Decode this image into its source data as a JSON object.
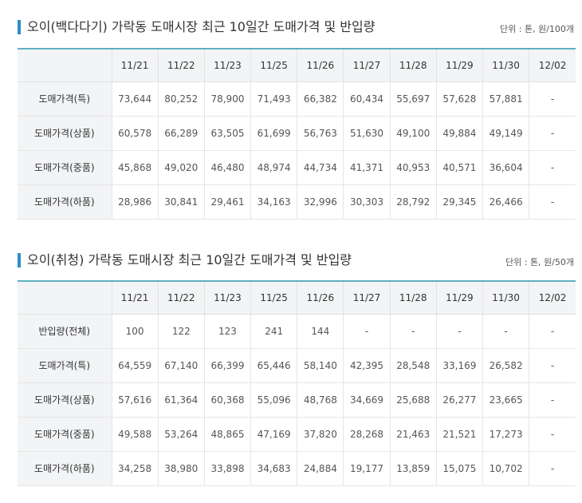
{
  "table1": {
    "title": "오이(백다다기) 가락동 도매시장 최근 10일간 도매가격 및 반입량",
    "unit": "단위 : 톤, 원/100개",
    "dates": [
      "11/21",
      "11/22",
      "11/23",
      "11/25",
      "11/26",
      "11/27",
      "11/28",
      "11/29",
      "11/30",
      "12/02"
    ],
    "rows": [
      {
        "label": "도매가격(특)",
        "values": [
          "73,644",
          "80,252",
          "78,900",
          "71,493",
          "66,382",
          "60,434",
          "55,697",
          "57,628",
          "57,881",
          "-"
        ]
      },
      {
        "label": "도매가격(상품)",
        "values": [
          "60,578",
          "66,289",
          "63,505",
          "61,699",
          "56,763",
          "51,630",
          "49,100",
          "49,884",
          "49,149",
          "-"
        ]
      },
      {
        "label": "도매가격(중품)",
        "values": [
          "45,868",
          "49,020",
          "46,480",
          "48,974",
          "44,734",
          "41,371",
          "40,953",
          "40,571",
          "36,604",
          "-"
        ]
      },
      {
        "label": "도매가격(하품)",
        "values": [
          "28,986",
          "30,841",
          "29,461",
          "34,163",
          "32,996",
          "30,303",
          "28,792",
          "29,345",
          "26,466",
          "-"
        ]
      }
    ]
  },
  "table2": {
    "title": "오이(취청) 가락동 도매시장 최근 10일간 도매가격 및 반입량",
    "unit": "단위 : 톤, 원/50개",
    "dates": [
      "11/21",
      "11/22",
      "11/23",
      "11/25",
      "11/26",
      "11/27",
      "11/28",
      "11/29",
      "11/30",
      "12/02"
    ],
    "rows": [
      {
        "label": "반입량(전체)",
        "values": [
          "100",
          "122",
          "123",
          "241",
          "144",
          "-",
          "-",
          "-",
          "-",
          "-"
        ]
      },
      {
        "label": "도매가격(특)",
        "values": [
          "64,559",
          "67,140",
          "66,399",
          "65,446",
          "58,140",
          "42,395",
          "28,548",
          "33,169",
          "26,582",
          "-"
        ]
      },
      {
        "label": "도매가격(상품)",
        "values": [
          "57,616",
          "61,364",
          "60,368",
          "55,096",
          "48,768",
          "34,669",
          "25,688",
          "26,277",
          "23,665",
          "-"
        ]
      },
      {
        "label": "도매가격(중품)",
        "values": [
          "49,588",
          "53,264",
          "48,865",
          "47,169",
          "37,820",
          "28,268",
          "21,463",
          "21,521",
          "17,273",
          "-"
        ]
      },
      {
        "label": "도매가격(하품)",
        "values": [
          "34,258",
          "38,980",
          "33,898",
          "34,683",
          "24,884",
          "19,177",
          "13,859",
          "15,075",
          "10,702",
          "-"
        ]
      }
    ]
  }
}
